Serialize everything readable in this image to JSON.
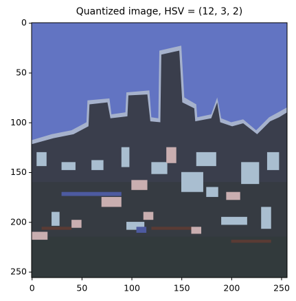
{
  "chart_data": {
    "type": "image",
    "title": "Quantized image, HSV = (12, 3, 2)",
    "xlim": [
      -0.5,
      255.5
    ],
    "ylim": [
      255.5,
      -0.5
    ],
    "xticks": [
      0,
      50,
      100,
      150,
      200,
      250
    ],
    "yticks": [
      0,
      50,
      100,
      150,
      200,
      250
    ]
  }
}
